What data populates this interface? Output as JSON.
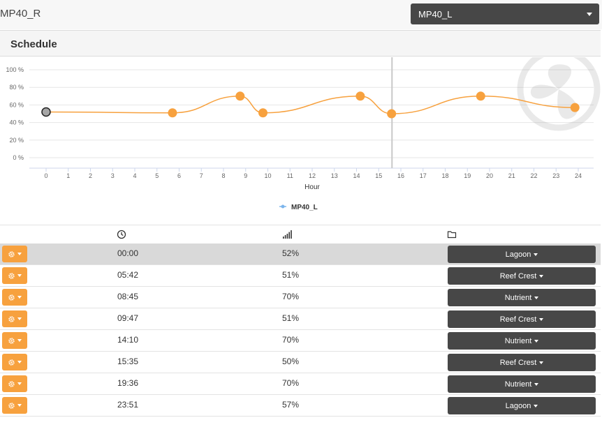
{
  "header": {
    "device_name": "MP40_R",
    "device_select": "MP40_L"
  },
  "panel": {
    "title": "Schedule"
  },
  "chart_data": {
    "type": "line",
    "xlabel": "Hour",
    "ylim": [
      0,
      100
    ],
    "y_ticks": [
      "0 %",
      "20 %",
      "40 %",
      "60 %",
      "80 %",
      "100 %"
    ],
    "x_ticks": [
      "0",
      "1",
      "2",
      "3",
      "4",
      "5",
      "6",
      "7",
      "8",
      "9",
      "10",
      "11",
      "12",
      "13",
      "14",
      "15",
      "16",
      "17",
      "18",
      "19",
      "20",
      "21",
      "22",
      "23",
      "24"
    ],
    "xlim": [
      0,
      24
    ],
    "current_time_marker": 15.6,
    "grid": true,
    "legend_position": "bottom",
    "series": [
      {
        "name": "MP40_L",
        "color": "#f7a13e",
        "points": [
          {
            "x": 0.0,
            "y": 52
          },
          {
            "x": 5.7,
            "y": 51
          },
          {
            "x": 8.75,
            "y": 70
          },
          {
            "x": 9.78,
            "y": 51
          },
          {
            "x": 14.17,
            "y": 70
          },
          {
            "x": 15.58,
            "y": 50
          },
          {
            "x": 19.6,
            "y": 70
          },
          {
            "x": 23.85,
            "y": 57
          }
        ]
      }
    ]
  },
  "table": {
    "columns": [
      {
        "icon": "clock-icon"
      },
      {
        "icon": "signal-icon"
      },
      {
        "icon": "folder-icon"
      }
    ],
    "rows": [
      {
        "time": "00:00",
        "pct": "52%",
        "mode": "Lagoon"
      },
      {
        "time": "05:42",
        "pct": "51%",
        "mode": "Reef Crest"
      },
      {
        "time": "08:45",
        "pct": "70%",
        "mode": "Nutrient"
      },
      {
        "time": "09:47",
        "pct": "51%",
        "mode": "Reef Crest"
      },
      {
        "time": "14:10",
        "pct": "70%",
        "mode": "Nutrient"
      },
      {
        "time": "15:35",
        "pct": "50%",
        "mode": "Reef Crest"
      },
      {
        "time": "19:36",
        "pct": "70%",
        "mode": "Nutrient"
      },
      {
        "time": "23:51",
        "pct": "57%",
        "mode": "Lagoon"
      }
    ]
  },
  "colors": {
    "accent": "#f7a13e",
    "button_dark": "#474747",
    "selected_row": "#d9d9d9"
  }
}
